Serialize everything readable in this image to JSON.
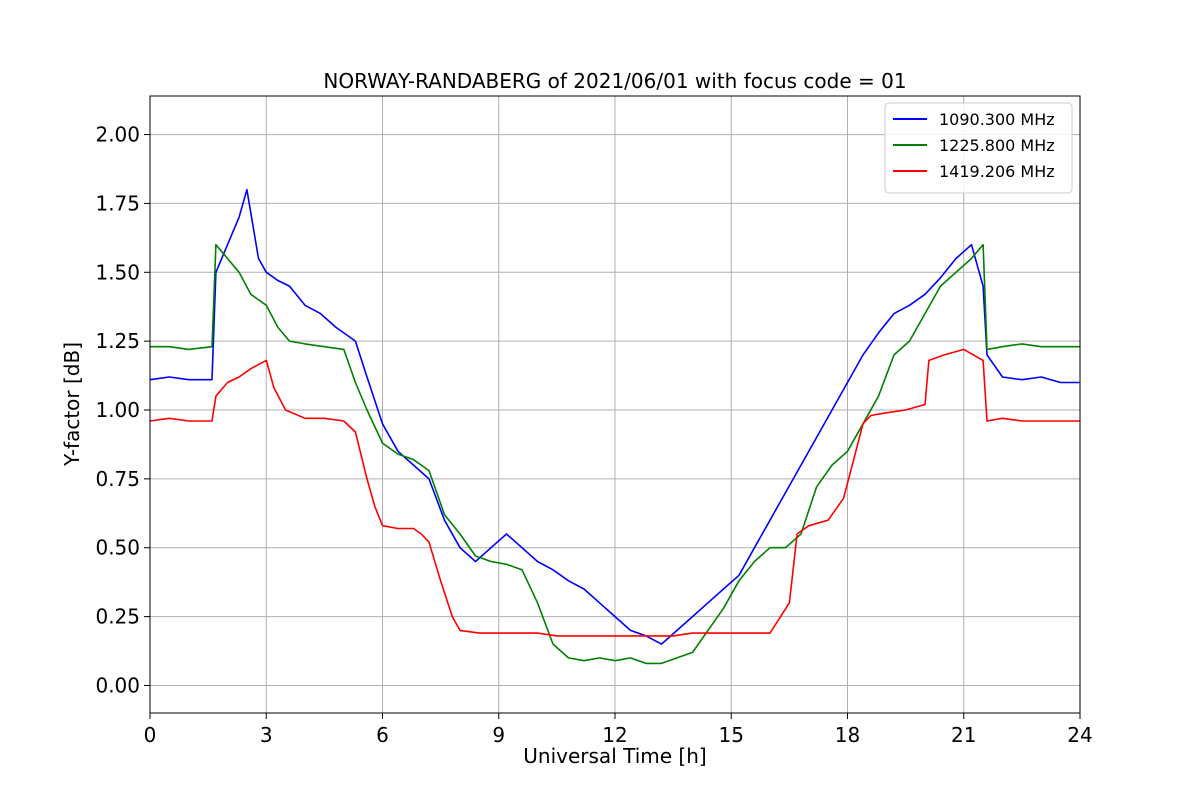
{
  "chart_data": {
    "type": "line",
    "title": "NORWAY-RANDABERG of 2021/06/01 with focus code = 01",
    "xlabel": "Universal Time [h]",
    "ylabel": "Y-factor [dB]",
    "xlim": [
      0,
      24
    ],
    "ylim": [
      -0.1,
      2.14
    ],
    "xticks": [
      0,
      3,
      6,
      9,
      12,
      15,
      18,
      21,
      24
    ],
    "xtick_labels": [
      "0",
      "3",
      "6",
      "9",
      "12",
      "15",
      "18",
      "21",
      "24"
    ],
    "yticks": [
      0.0,
      0.25,
      0.5,
      0.75,
      1.0,
      1.25,
      1.5,
      1.75,
      2.0
    ],
    "ytick_labels": [
      "0.00",
      "0.25",
      "0.50",
      "0.75",
      "1.00",
      "1.25",
      "1.50",
      "1.75",
      "2.00"
    ],
    "grid": true,
    "legend_position": "top-right",
    "series": [
      {
        "name": "1090.300 MHz",
        "color": "#0000ff",
        "x": [
          0,
          0.5,
          1.0,
          1.6,
          1.7,
          2.0,
          2.3,
          2.5,
          2.8,
          3.0,
          3.3,
          3.6,
          4.0,
          4.4,
          4.8,
          5.0,
          5.3,
          5.6,
          6.0,
          6.4,
          6.8,
          7.2,
          7.6,
          8.0,
          8.4,
          8.8,
          9.2,
          9.6,
          10.0,
          10.4,
          10.8,
          11.2,
          11.6,
          12.0,
          12.4,
          12.8,
          13.2,
          13.6,
          14.0,
          14.4,
          14.8,
          15.2,
          15.6,
          16.0,
          16.4,
          16.8,
          17.2,
          17.6,
          18.0,
          18.4,
          18.8,
          19.2,
          19.6,
          20.0,
          20.4,
          20.8,
          21.2,
          21.5,
          21.6,
          22.0,
          22.5,
          23.0,
          23.5,
          24.0
        ],
        "y": [
          1.11,
          1.12,
          1.11,
          1.11,
          1.5,
          1.6,
          1.7,
          1.8,
          1.55,
          1.5,
          1.47,
          1.45,
          1.38,
          1.35,
          1.3,
          1.28,
          1.25,
          1.12,
          0.95,
          0.85,
          0.8,
          0.75,
          0.6,
          0.5,
          0.45,
          0.5,
          0.55,
          0.5,
          0.45,
          0.42,
          0.38,
          0.35,
          0.3,
          0.25,
          0.2,
          0.18,
          0.15,
          0.2,
          0.25,
          0.3,
          0.35,
          0.4,
          0.5,
          0.6,
          0.7,
          0.8,
          0.9,
          1.0,
          1.1,
          1.2,
          1.28,
          1.35,
          1.38,
          1.42,
          1.48,
          1.55,
          1.6,
          1.45,
          1.2,
          1.12,
          1.11,
          1.12,
          1.1,
          1.1
        ]
      },
      {
        "name": "1225.800 MHz",
        "color": "#008000",
        "x": [
          0,
          0.5,
          1.0,
          1.6,
          1.7,
          2.0,
          2.3,
          2.6,
          3.0,
          3.3,
          3.6,
          4.0,
          4.5,
          5.0,
          5.3,
          5.6,
          6.0,
          6.4,
          6.8,
          7.2,
          7.6,
          8.0,
          8.4,
          8.8,
          9.2,
          9.6,
          10.0,
          10.4,
          10.8,
          11.2,
          11.6,
          12.0,
          12.4,
          12.8,
          13.2,
          13.6,
          14.0,
          14.4,
          14.8,
          15.2,
          15.6,
          16.0,
          16.4,
          16.8,
          17.2,
          17.6,
          18.0,
          18.4,
          18.8,
          19.2,
          19.6,
          20.0,
          20.4,
          20.8,
          21.2,
          21.5,
          21.6,
          22.0,
          22.5,
          23.0,
          23.5,
          24.0
        ],
        "y": [
          1.23,
          1.23,
          1.22,
          1.23,
          1.6,
          1.55,
          1.5,
          1.42,
          1.38,
          1.3,
          1.25,
          1.24,
          1.23,
          1.22,
          1.1,
          1.0,
          0.88,
          0.84,
          0.82,
          0.78,
          0.62,
          0.55,
          0.47,
          0.45,
          0.44,
          0.42,
          0.3,
          0.15,
          0.1,
          0.09,
          0.1,
          0.09,
          0.1,
          0.08,
          0.08,
          0.1,
          0.12,
          0.2,
          0.28,
          0.38,
          0.45,
          0.5,
          0.5,
          0.55,
          0.72,
          0.8,
          0.85,
          0.95,
          1.05,
          1.2,
          1.25,
          1.35,
          1.45,
          1.5,
          1.55,
          1.6,
          1.22,
          1.23,
          1.24,
          1.23,
          1.23,
          1.23
        ]
      },
      {
        "name": "1419.206 MHz",
        "color": "#ff0000",
        "x": [
          0,
          0.5,
          1.0,
          1.6,
          1.7,
          2.0,
          2.3,
          2.6,
          3.0,
          3.2,
          3.5,
          4.0,
          4.5,
          5.0,
          5.3,
          5.6,
          5.8,
          6.0,
          6.4,
          6.8,
          7.0,
          7.2,
          7.5,
          7.8,
          8.0,
          8.5,
          9.0,
          9.5,
          10.0,
          10.5,
          11.0,
          11.5,
          12.0,
          12.5,
          13.0,
          13.5,
          14.0,
          14.5,
          15.0,
          15.5,
          16.0,
          16.5,
          16.7,
          17.0,
          17.5,
          17.9,
          18.4,
          18.6,
          19.0,
          19.5,
          20.0,
          20.1,
          20.5,
          21.0,
          21.5,
          21.6,
          22.0,
          22.5,
          23.0,
          23.5,
          24.0
        ],
        "y": [
          0.96,
          0.97,
          0.96,
          0.96,
          1.05,
          1.1,
          1.12,
          1.15,
          1.18,
          1.08,
          1.0,
          0.97,
          0.97,
          0.96,
          0.92,
          0.75,
          0.65,
          0.58,
          0.57,
          0.57,
          0.55,
          0.52,
          0.38,
          0.25,
          0.2,
          0.19,
          0.19,
          0.19,
          0.19,
          0.18,
          0.18,
          0.18,
          0.18,
          0.18,
          0.18,
          0.18,
          0.19,
          0.19,
          0.19,
          0.19,
          0.19,
          0.3,
          0.55,
          0.58,
          0.6,
          0.68,
          0.95,
          0.98,
          0.99,
          1.0,
          1.02,
          1.18,
          1.2,
          1.22,
          1.18,
          0.96,
          0.97,
          0.96,
          0.96,
          0.96,
          0.96
        ]
      }
    ]
  }
}
